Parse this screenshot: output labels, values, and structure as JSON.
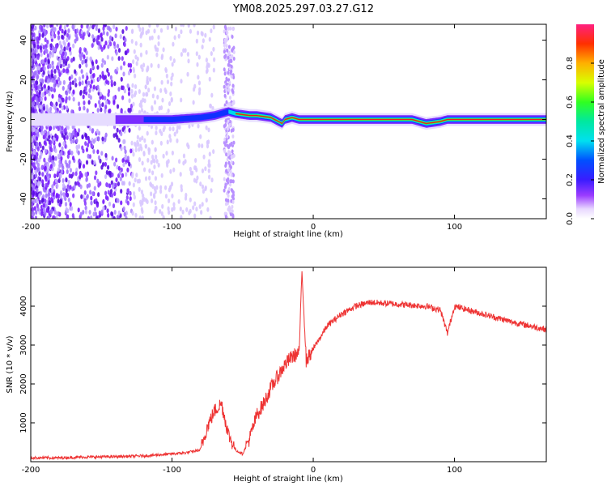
{
  "title": "YM08.2025.297.03.27.G12",
  "chart_data": [
    {
      "type": "heatmap",
      "xlabel": "Height of straight line (km)",
      "ylabel": "Frequency (Hz)",
      "xlim": [
        -200,
        165
      ],
      "ylim": [
        -50,
        48
      ],
      "x_ticks": [
        "-200",
        "-100",
        "0",
        "100"
      ],
      "y_ticks": [
        "-40",
        "-20",
        "0",
        "20",
        "40"
      ],
      "colorbar": {
        "label": "Normalized spectral amplitude",
        "range": [
          0,
          1
        ],
        "ticks": [
          "0.0",
          "0.2",
          "0.4",
          "0.6",
          "0.8"
        ]
      },
      "ridge": {
        "x": [
          -200,
          -150,
          -120,
          -100,
          -80,
          -70,
          -60,
          -55,
          -45,
          -40,
          -30,
          -22,
          -20,
          -15,
          -10,
          -5,
          0,
          20,
          50,
          70,
          75,
          80,
          90,
          95,
          120,
          165
        ],
        "y": [
          0,
          0,
          0,
          0,
          1,
          2,
          4,
          3,
          2,
          2,
          1,
          -2,
          0,
          1,
          0,
          0,
          0,
          0,
          0,
          0,
          -1,
          -2,
          -1,
          0,
          0,
          0
        ]
      },
      "grid": false
    },
    {
      "type": "line",
      "xlabel": "Height of straight line (km)",
      "ylabel": "SNR (10 * v/v)",
      "xlim": [
        -200,
        165
      ],
      "ylim": [
        0,
        5000
      ],
      "x_ticks": [
        "-200",
        "-100",
        "0",
        "100"
      ],
      "y_ticks": [
        "1000",
        "2000",
        "3000",
        "4000"
      ],
      "color": "#ee3333",
      "series": [
        {
          "x": [
            -200,
            -180,
            -160,
            -140,
            -120,
            -100,
            -90,
            -80,
            -75,
            -70,
            -65,
            -60,
            -55,
            -50,
            -45,
            -40,
            -35,
            -30,
            -25,
            -20,
            -15,
            -10,
            -8,
            -5,
            0,
            5,
            10,
            20,
            30,
            40,
            60,
            80,
            90,
            95,
            100,
            120,
            140,
            165
          ],
          "y": [
            100,
            100,
            120,
            130,
            150,
            200,
            230,
            300,
            900,
            1300,
            1500,
            700,
            300,
            200,
            600,
            1200,
            1500,
            1900,
            2200,
            2500,
            2700,
            2800,
            4900,
            2600,
            2900,
            3200,
            3500,
            3800,
            4000,
            4100,
            4050,
            4000,
            3900,
            3300,
            4000,
            3800,
            3600,
            3400
          ]
        }
      ],
      "grid": false
    }
  ]
}
